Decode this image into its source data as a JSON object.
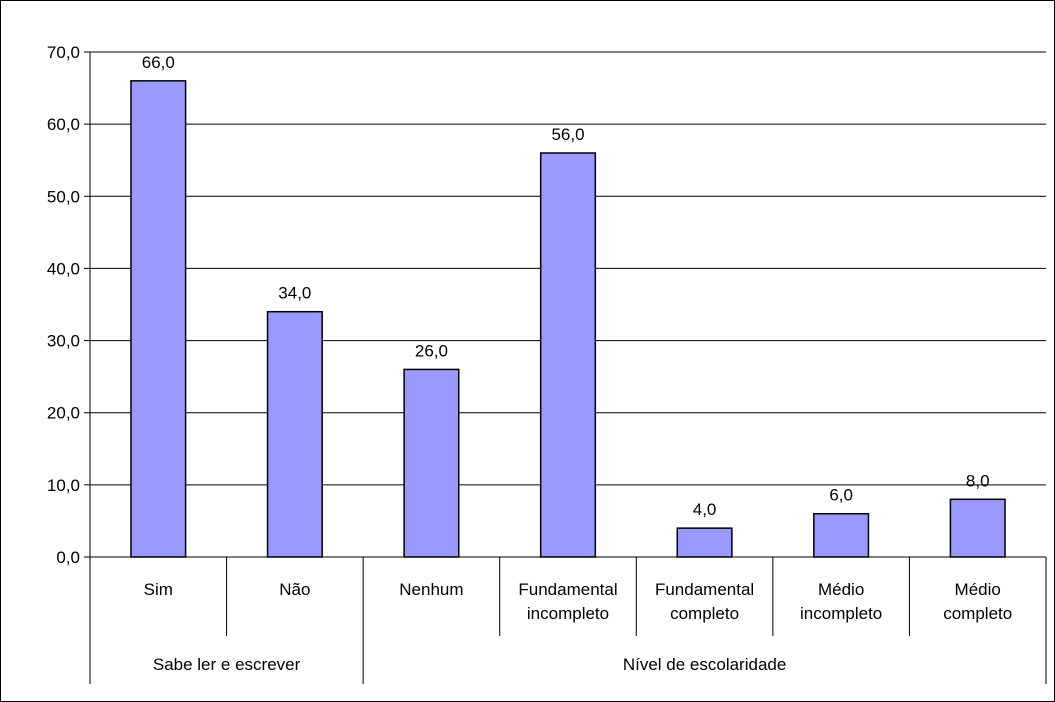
{
  "chart_data": {
    "type": "bar",
    "categories": [
      [
        "Sim"
      ],
      [
        "Não"
      ],
      [
        "Nenhum"
      ],
      [
        "Fundamental",
        "incompleto"
      ],
      [
        "Fundamental",
        "completo"
      ],
      [
        "Médio",
        "incompleto"
      ],
      [
        "Médio",
        "completo"
      ]
    ],
    "values": [
      66.0,
      34.0,
      26.0,
      56.0,
      4.0,
      6.0,
      8.0
    ],
    "value_labels": [
      "66,0",
      "34,0",
      "26,0",
      "56,0",
      "4,0",
      "6,0",
      "8,0"
    ],
    "groups": [
      {
        "label": "Sabe ler e escrever",
        "count": 2
      },
      {
        "label": "Nível de escolaridade",
        "count": 5
      }
    ],
    "y_ticks": [
      "0,0",
      "10,0",
      "20,0",
      "30,0",
      "40,0",
      "50,0",
      "60,0",
      "70,0"
    ],
    "ylim": [
      0,
      70
    ],
    "grid": true,
    "legend": "none",
    "colors": {
      "bar_fill": "#9999FF",
      "bar_stroke": "#000000",
      "grid": "#000000"
    }
  }
}
